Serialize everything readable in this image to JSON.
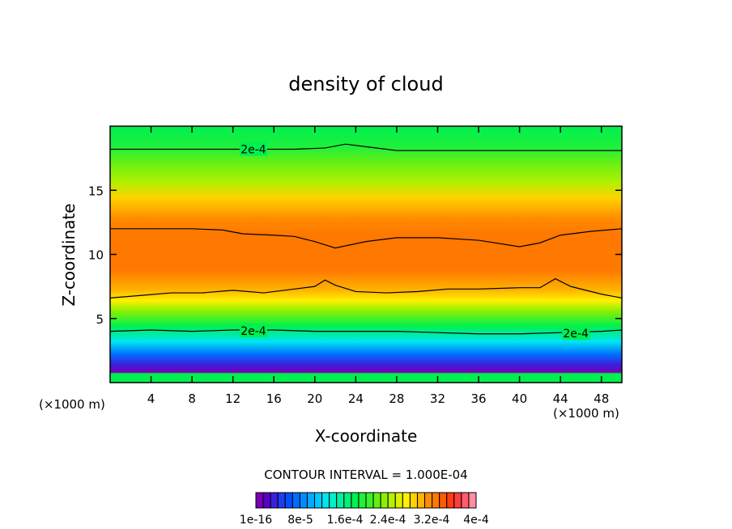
{
  "chart_data": {
    "type": "heatmap",
    "title": "density of cloud",
    "xlabel": "X-coordinate",
    "ylabel": "Z-coordinate",
    "x_unit": "(×1000 m)",
    "y_unit": "(×1000 m)",
    "xlim": [
      0,
      50
    ],
    "ylim": [
      0,
      20
    ],
    "x_ticks": [
      4,
      8,
      12,
      16,
      20,
      24,
      28,
      32,
      36,
      40,
      44,
      48
    ],
    "y_ticks": [
      5,
      10,
      15
    ],
    "contour_interval_text": "CONTOUR INTERVAL = 1.000E-04",
    "colorbar": {
      "labels": [
        "1e-16",
        "8e-5",
        "1.6e-4",
        "2.4e-4",
        "3.2e-4",
        "4e-4"
      ],
      "colors": [
        "#7a00b4",
        "#5a00c8",
        "#3c1edc",
        "#1e3cf0",
        "#0050ff",
        "#006eff",
        "#008cff",
        "#00aaff",
        "#00c8ff",
        "#00e6f0",
        "#00f0c8",
        "#00f0a0",
        "#00f078",
        "#00f050",
        "#1ef03c",
        "#3cf028",
        "#64f014",
        "#8cf000",
        "#b4f000",
        "#dcf000",
        "#fff000",
        "#ffd200",
        "#ffb400",
        "#ff8c00",
        "#ff7800",
        "#ff5a00",
        "#ff3c14",
        "#ff3c3c",
        "#ff5a6e",
        "#ff8ca0"
      ]
    },
    "contour_lines": [
      {
        "label": "2e-4",
        "values": [
          [
            0,
            18.2
          ],
          [
            6,
            18.2
          ],
          [
            12,
            18.2
          ],
          [
            18,
            18.2
          ],
          [
            21,
            18.3
          ],
          [
            23,
            18.6
          ],
          [
            25,
            18.4
          ],
          [
            28,
            18.1
          ],
          [
            34,
            18.1
          ],
          [
            40,
            18.1
          ],
          [
            46,
            18.1
          ],
          [
            50,
            18.1
          ]
        ]
      },
      {
        "label": "",
        "values": [
          [
            0,
            12.0
          ],
          [
            4,
            12.0
          ],
          [
            8,
            12.0
          ],
          [
            11,
            11.9
          ],
          [
            13,
            11.6
          ],
          [
            16,
            11.5
          ],
          [
            18,
            11.4
          ],
          [
            20,
            11.0
          ],
          [
            22,
            10.5
          ],
          [
            25,
            11.0
          ],
          [
            28,
            11.3
          ],
          [
            32,
            11.3
          ],
          [
            36,
            11.1
          ],
          [
            40,
            10.6
          ],
          [
            42,
            10.9
          ],
          [
            44,
            11.5
          ],
          [
            47,
            11.8
          ],
          [
            50,
            12.0
          ]
        ]
      },
      {
        "label": "",
        "values": [
          [
            0,
            6.6
          ],
          [
            3,
            6.8
          ],
          [
            6,
            7.0
          ],
          [
            9,
            7.0
          ],
          [
            12,
            7.2
          ],
          [
            15,
            7.0
          ],
          [
            18,
            7.3
          ],
          [
            20,
            7.5
          ],
          [
            21,
            8.0
          ],
          [
            22,
            7.6
          ],
          [
            24,
            7.1
          ],
          [
            27,
            7.0
          ],
          [
            30,
            7.1
          ],
          [
            33,
            7.3
          ],
          [
            36,
            7.3
          ],
          [
            40,
            7.4
          ],
          [
            42,
            7.4
          ],
          [
            43.5,
            8.1
          ],
          [
            45,
            7.5
          ],
          [
            48,
            6.9
          ],
          [
            50,
            6.6
          ]
        ]
      },
      {
        "label": "2e-4",
        "values": [
          [
            0,
            4.0
          ],
          [
            4,
            4.1
          ],
          [
            8,
            4.0
          ],
          [
            12,
            4.1
          ],
          [
            16,
            4.1
          ],
          [
            20,
            4.0
          ],
          [
            24,
            4.0
          ],
          [
            28,
            4.0
          ],
          [
            32,
            3.9
          ],
          [
            36,
            3.8
          ],
          [
            40,
            3.8
          ],
          [
            44,
            3.9
          ],
          [
            48,
            4.0
          ],
          [
            50,
            4.1
          ]
        ]
      }
    ]
  }
}
